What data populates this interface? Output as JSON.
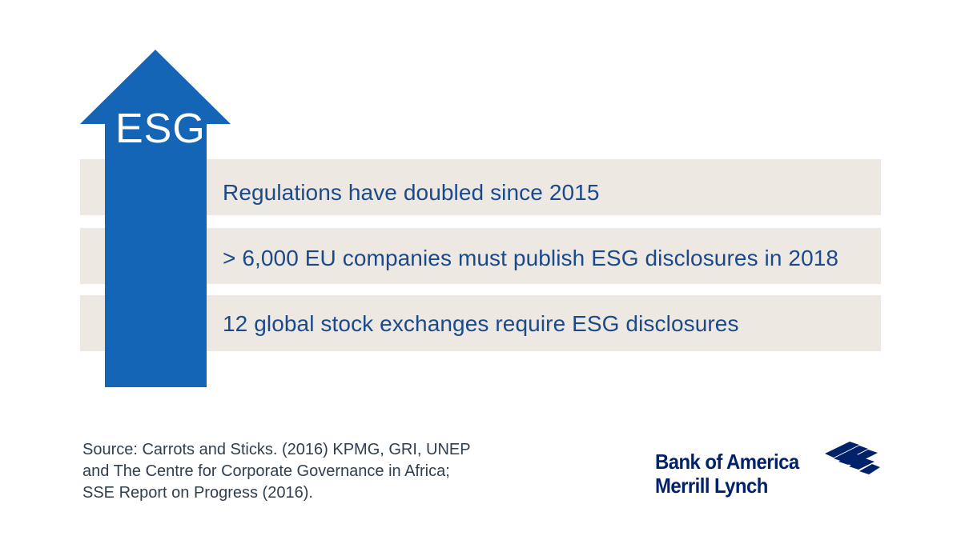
{
  "arrow": {
    "label": "ESG",
    "color": "#1565b7"
  },
  "bars": [
    {
      "text": "Regulations have doubled since 2015"
    },
    {
      "text": "> 6,000 EU companies must publish ESG disclosures in 2018"
    },
    {
      "text": "12 global stock exchanges require ESG disclosures"
    }
  ],
  "bar_color": "#ede8e1",
  "text_color": "#1a4a8c",
  "source": {
    "lines": [
      "Source: Carrots and Sticks. (2016) KPMG, GRI, UNEP",
      "and The Centre for Corporate Governance in Africa;",
      "SSE Report on Progress (2016)."
    ]
  },
  "logo": {
    "line1": "Bank of America",
    "line2": "Merrill Lynch",
    "icon": "flag-icon",
    "color": "#012169"
  }
}
